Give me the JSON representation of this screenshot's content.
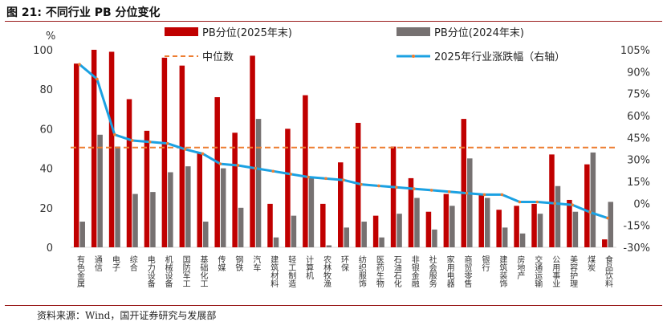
{
  "header": {
    "title": "图 21:  不同行业 PB 分位变化"
  },
  "footer": {
    "source": "资料来源：Wind，国开证券研究与发展部"
  },
  "colors": {
    "pb2025": "#c00000",
    "pb2024": "#767171",
    "median": "#ed7d31",
    "change": "#1ba1e2",
    "axis": "#d9d9d9"
  },
  "chart_data": {
    "type": "bar",
    "title": "不同行业 PB 分位变化",
    "ylabel": "%",
    "ylim": [
      0,
      100
    ],
    "y_ticks": [
      0,
      20,
      40,
      60,
      80,
      100
    ],
    "y2lim": [
      -30,
      105
    ],
    "y2_ticks": [
      "105%",
      "90%",
      "75%",
      "60%",
      "45%",
      "30%",
      "15%",
      "0%",
      "-15%",
      "-30%"
    ],
    "legend": {
      "position": "top",
      "pb2025": "PB分位(2025年末)",
      "pb2024": "PB分位(2024年末)",
      "median": "中位数",
      "change": "2025年行业涨跌幅（右轴）"
    },
    "categories": [
      "有色金属",
      "通信",
      "电子",
      "综合",
      "电力设备",
      "机械设备",
      "国防军工",
      "基础化工",
      "传媒",
      "钢铁",
      "汽车",
      "建筑材料",
      "轻工制造",
      "计算机",
      "农林牧渔",
      "环保",
      "纺织服饰",
      "医药生物",
      "石油石化",
      "非银金融",
      "社会服务",
      "家用电器",
      "商贸零售",
      "银行",
      "建筑装饰",
      "房地产",
      "交通运输",
      "公用事业",
      "美容护理",
      "煤炭",
      "食品饮料"
    ],
    "series": [
      {
        "name": "PB分位(2025年末)",
        "axis": "left",
        "values": [
          93,
          100,
          99,
          75,
          59,
          96,
          92,
          48,
          76,
          58,
          97,
          22,
          60,
          77,
          22,
          43,
          63,
          16,
          51,
          35,
          18,
          27,
          65,
          27,
          19,
          21,
          22,
          47,
          24,
          42,
          4
        ]
      },
      {
        "name": "PB分位(2024年末)",
        "axis": "left",
        "values": [
          13,
          57,
          51,
          27,
          28,
          38,
          41,
          13,
          40,
          20,
          65,
          5,
          16,
          35,
          1,
          10,
          13,
          5,
          17,
          25,
          9,
          21,
          45,
          25,
          10,
          7,
          17,
          31,
          18,
          48,
          23
        ]
      },
      {
        "name": "中位数",
        "axis": "left",
        "value": 50.5
      },
      {
        "name": "2025年行业涨跌幅（右轴）",
        "axis": "right",
        "values": [
          95,
          85,
          47,
          43,
          42,
          41,
          37,
          34,
          27,
          26,
          24,
          22,
          20,
          18,
          17,
          16,
          13,
          12,
          11,
          10,
          9,
          8,
          7,
          6,
          6,
          1,
          1,
          0,
          -1,
          -6,
          -10
        ]
      }
    ]
  }
}
